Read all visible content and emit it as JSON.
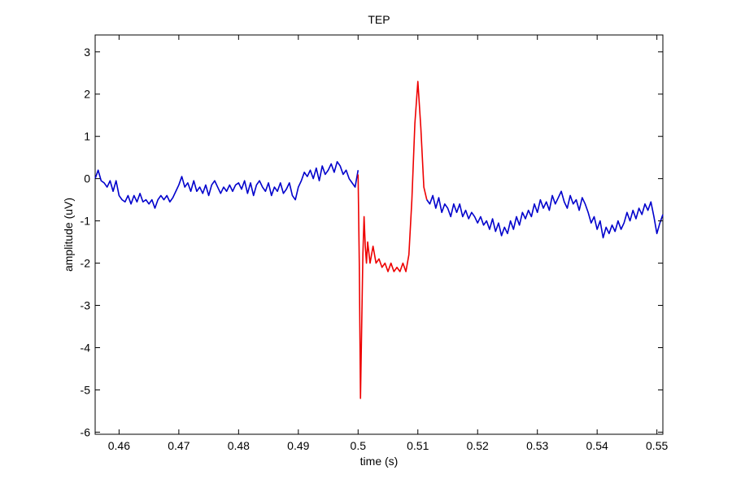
{
  "chart_data": {
    "type": "line",
    "title": "TEP",
    "xlabel": "time (s)",
    "ylabel": "amplitude (uV)",
    "xlim": [
      0.456,
      0.551
    ],
    "ylim": [
      -6.05,
      3.4
    ],
    "xticks": [
      0.46,
      0.47,
      0.48,
      0.49,
      0.5,
      0.51,
      0.52,
      0.53,
      0.54,
      0.55
    ],
    "xtick_labels": [
      "0.46",
      "0.47",
      "0.48",
      "0.49",
      "0.5",
      "0.51",
      "0.52",
      "0.53",
      "0.54",
      "0.55"
    ],
    "yticks": [
      -6,
      -5,
      -4,
      -3,
      -2,
      -1,
      0,
      1,
      2,
      3
    ],
    "ytick_labels": [
      "-6",
      "-5",
      "-4",
      "-3",
      "-2",
      "-1",
      "0",
      "1",
      "2",
      "3"
    ],
    "grid": false,
    "series": [
      {
        "color": "#0000cc",
        "x": [
          0.456,
          0.4565,
          0.457,
          0.4575,
          0.458,
          0.4585,
          0.459,
          0.4595,
          0.46,
          0.4605,
          0.461,
          0.4615,
          0.462,
          0.4625,
          0.463,
          0.4635,
          0.464,
          0.4645,
          0.465,
          0.4655,
          0.466,
          0.4665,
          0.467,
          0.4675,
          0.468,
          0.4685,
          0.469,
          0.4695,
          0.47,
          0.4705,
          0.471,
          0.4715,
          0.472,
          0.4725,
          0.473,
          0.4735,
          0.474,
          0.4745,
          0.475,
          0.4755,
          0.476,
          0.4765,
          0.477,
          0.4775,
          0.478,
          0.4785,
          0.479,
          0.4795,
          0.48,
          0.4805,
          0.481,
          0.4815,
          0.482,
          0.4825,
          0.483,
          0.4835,
          0.484,
          0.4845,
          0.485,
          0.4855,
          0.486,
          0.4865,
          0.487,
          0.4875,
          0.488,
          0.4885,
          0.489,
          0.4895,
          0.49,
          0.4905,
          0.491,
          0.4915,
          0.492,
          0.4925,
          0.493,
          0.4935,
          0.494,
          0.4945,
          0.495,
          0.4955,
          0.496,
          0.4965,
          0.497,
          0.4975,
          0.498,
          0.4985,
          0.499,
          0.4995,
          0.5
        ],
        "y": [
          0.0,
          0.2,
          -0.05,
          -0.1,
          -0.2,
          -0.05,
          -0.3,
          -0.05,
          -0.4,
          -0.5,
          -0.55,
          -0.4,
          -0.6,
          -0.4,
          -0.55,
          -0.35,
          -0.55,
          -0.5,
          -0.6,
          -0.5,
          -0.7,
          -0.5,
          -0.4,
          -0.5,
          -0.4,
          -0.55,
          -0.45,
          -0.3,
          -0.15,
          0.05,
          -0.2,
          -0.1,
          -0.3,
          -0.05,
          -0.3,
          -0.2,
          -0.35,
          -0.15,
          -0.4,
          -0.15,
          -0.05,
          -0.2,
          -0.35,
          -0.2,
          -0.3,
          -0.15,
          -0.3,
          -0.15,
          -0.1,
          -0.25,
          -0.05,
          -0.35,
          -0.1,
          -0.4,
          -0.15,
          -0.05,
          -0.2,
          -0.3,
          -0.1,
          -0.4,
          -0.2,
          -0.3,
          -0.1,
          -0.35,
          -0.25,
          -0.1,
          -0.4,
          -0.5,
          -0.2,
          -0.05,
          0.15,
          0.05,
          0.2,
          0.0,
          0.25,
          -0.05,
          0.3,
          0.1,
          0.2,
          0.35,
          0.15,
          0.4,
          0.3,
          0.1,
          0.2,
          0.0,
          -0.1,
          -0.2,
          0.2
        ]
      },
      {
        "color": "#ee0000",
        "x": [
          0.5,
          0.5002,
          0.5004,
          0.5006,
          0.5008,
          0.501,
          0.5012,
          0.5014,
          0.5016,
          0.502,
          0.5025,
          0.503,
          0.5035,
          0.504,
          0.5045,
          0.505,
          0.5055,
          0.506,
          0.5065,
          0.507,
          0.5075,
          0.508,
          0.5085,
          0.509,
          0.5095,
          0.51,
          0.5105,
          0.511,
          0.5115
        ],
        "y": [
          0.1,
          -2.0,
          -5.2,
          -3.5,
          -1.8,
          -0.9,
          -1.6,
          -2.0,
          -1.5,
          -2.0,
          -1.6,
          -2.0,
          -1.9,
          -2.1,
          -2.0,
          -2.2,
          -2.0,
          -2.2,
          -2.1,
          -2.2,
          -2.0,
          -2.2,
          -1.8,
          -0.5,
          1.3,
          2.3,
          1.2,
          -0.2,
          -0.5
        ]
      },
      {
        "color": "#0000cc",
        "x": [
          0.5115,
          0.512,
          0.5125,
          0.513,
          0.5135,
          0.514,
          0.5145,
          0.515,
          0.5155,
          0.516,
          0.5165,
          0.517,
          0.5175,
          0.518,
          0.5185,
          0.519,
          0.5195,
          0.52,
          0.5205,
          0.521,
          0.5215,
          0.522,
          0.5225,
          0.523,
          0.5235,
          0.524,
          0.5245,
          0.525,
          0.5255,
          0.526,
          0.5265,
          0.527,
          0.5275,
          0.528,
          0.5285,
          0.529,
          0.5295,
          0.53,
          0.5305,
          0.531,
          0.5315,
          0.532,
          0.5325,
          0.533,
          0.5335,
          0.534,
          0.5345,
          0.535,
          0.5355,
          0.536,
          0.5365,
          0.537,
          0.5375,
          0.538,
          0.5385,
          0.539,
          0.5395,
          0.54,
          0.5405,
          0.541,
          0.5415,
          0.542,
          0.5425,
          0.543,
          0.5435,
          0.544,
          0.5445,
          0.545,
          0.5455,
          0.546,
          0.5465,
          0.547,
          0.5475,
          0.548,
          0.5485,
          0.549,
          0.5495,
          0.55,
          0.5505,
          0.551
        ],
        "y": [
          -0.5,
          -0.6,
          -0.4,
          -0.7,
          -0.45,
          -0.8,
          -0.6,
          -0.7,
          -0.9,
          -0.6,
          -0.8,
          -0.6,
          -0.9,
          -0.75,
          -0.95,
          -0.8,
          -0.9,
          -1.05,
          -0.9,
          -1.1,
          -1.0,
          -1.2,
          -0.95,
          -1.25,
          -1.05,
          -1.35,
          -1.15,
          -1.3,
          -1.0,
          -1.2,
          -0.9,
          -1.1,
          -0.8,
          -0.95,
          -0.75,
          -0.9,
          -0.6,
          -0.8,
          -0.5,
          -0.7,
          -0.55,
          -0.75,
          -0.4,
          -0.6,
          -0.45,
          -0.3,
          -0.55,
          -0.7,
          -0.4,
          -0.6,
          -0.5,
          -0.75,
          -0.45,
          -0.6,
          -0.8,
          -1.05,
          -0.9,
          -1.2,
          -1.0,
          -1.4,
          -1.15,
          -1.3,
          -1.1,
          -1.25,
          -1.0,
          -1.2,
          -1.05,
          -0.8,
          -1.0,
          -0.75,
          -0.95,
          -0.7,
          -0.85,
          -0.6,
          -0.75,
          -0.55,
          -0.9,
          -1.3,
          -1.05,
          -0.85
        ]
      }
    ]
  }
}
